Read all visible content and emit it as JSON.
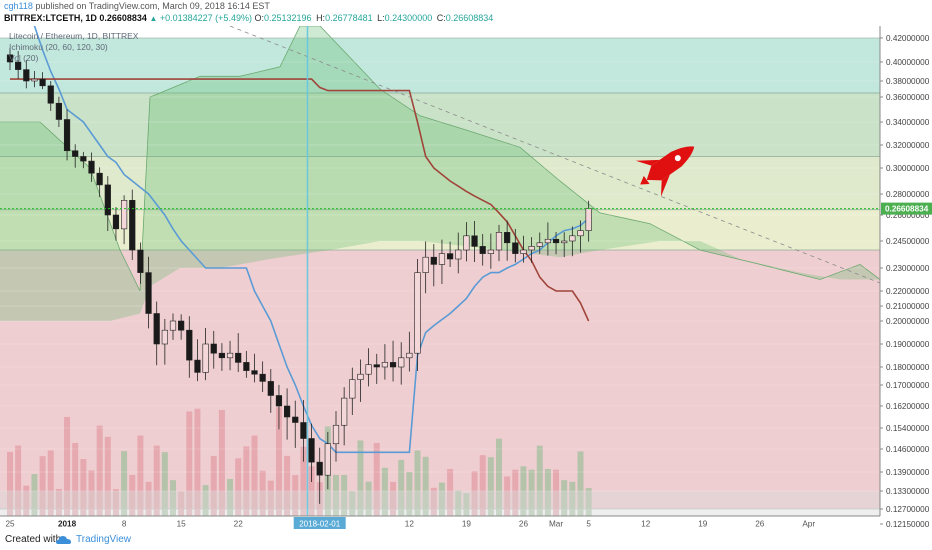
{
  "header": {
    "author": "cgh118",
    "published_text": "published on TradingView.com, March 09, 2018 16:14 EST",
    "symbol": "BITTREX:LTCETH, 1D",
    "price": "0.26608834",
    "change_arrow": "▲",
    "change": "+0.01384227 (+5.49%)",
    "open_label": "O:",
    "open": "0.25132196",
    "high_label": "H:",
    "high": "0.26778481",
    "low_label": "L:",
    "low": "0.24300000",
    "close_label": "C:",
    "close": "0.26608834"
  },
  "legend": {
    "title": "Litecoin / Ethereum, 1D, BITTREX",
    "ichimoku": "Ichimoku (20, 60, 120, 30)",
    "volume": "Vol (20)"
  },
  "footer": {
    "created_with": "Created with",
    "brand": "TradingView"
  },
  "colors": {
    "up_candle": "#f4d7d9",
    "down_candle": "#1a1a1a",
    "conversion_line": "#5b9bd5",
    "base_line": "#a0453a",
    "last_price": "#26c026",
    "crosshair": "#66c7e0",
    "rocket": "#e01010"
  },
  "chart_data": {
    "type": "candlestick",
    "symbol": "LTCETH",
    "exchange": "BITTREX",
    "interval": "1D",
    "ylim": [
      0.12,
      0.425
    ],
    "y_ticks": [
      "0.42000000",
      "0.40000000",
      "0.38000000",
      "0.36000000",
      "0.34000000",
      "0.32000000",
      "0.30000000",
      "0.28000000",
      "0.26000000",
      "0.24500000",
      "0.23000000",
      "0.22000000",
      "0.21000000",
      "0.20000000",
      "0.19000000",
      "0.18000000",
      "0.17000000",
      "0.16200000",
      "0.15400000",
      "0.14600000",
      "0.13900000",
      "0.13300000",
      "0.12700000",
      "0.12150000"
    ],
    "x_ticks": [
      {
        "label": "25",
        "index": 0
      },
      {
        "label": "2018",
        "index": 7
      },
      {
        "label": "8",
        "index": 14
      },
      {
        "label": "15",
        "index": 21
      },
      {
        "label": "22",
        "index": 28
      },
      {
        "label": "2018-02-01",
        "index": 38
      },
      {
        "label": "12",
        "index": 49
      },
      {
        "label": "19",
        "index": 56
      },
      {
        "label": "26",
        "index": 63
      },
      {
        "label": "Mar",
        "index": 67
      },
      {
        "label": "5",
        "index": 71
      },
      {
        "label": "12",
        "index": 78
      },
      {
        "label": "19",
        "index": 85
      },
      {
        "label": "26",
        "index": 92
      },
      {
        "label": "Apr",
        "index": 98
      }
    ],
    "crosshair_date": "2018-02-01",
    "last_price_label": "0.26608834",
    "last_price": 0.26608834,
    "fib_levels": [
      0.42,
      0.365,
      0.31,
      0.265,
      0.24,
      0.127
    ],
    "closes": [
      0.4,
      0.392,
      0.38,
      0.382,
      0.374,
      0.355,
      0.342,
      0.315,
      0.31,
      0.306,
      0.296,
      0.287,
      0.26,
      0.252,
      0.274,
      0.24,
      0.228,
      0.205,
      0.19,
      0.196,
      0.2,
      0.196,
      0.183,
      0.177,
      0.19,
      0.186,
      0.184,
      0.186,
      0.182,
      0.178,
      0.176,
      0.172,
      0.166,
      0.162,
      0.158,
      0.156,
      0.15,
      0.142,
      0.138,
      0.148,
      0.155,
      0.165,
      0.173,
      0.176,
      0.181,
      0.18,
      0.182,
      0.18,
      0.184,
      0.186,
      0.228,
      0.236,
      0.232,
      0.238,
      0.235,
      0.24,
      0.248,
      0.242,
      0.238,
      0.24,
      0.25,
      0.244,
      0.238,
      0.24,
      0.242,
      0.244,
      0.246,
      0.244,
      0.245,
      0.248,
      0.251,
      0.266
    ],
    "conversion_line": [
      0.46,
      0.46,
      0.45,
      0.43,
      0.41,
      0.39,
      0.37,
      0.35,
      0.345,
      0.34,
      0.33,
      0.32,
      0.31,
      0.305,
      0.295,
      0.29,
      0.285,
      0.28,
      0.27,
      0.26,
      0.252,
      0.245,
      0.24,
      0.235,
      0.23,
      0.23,
      0.23,
      0.23,
      0.23,
      0.23,
      0.22,
      0.21,
      0.2,
      0.19,
      0.18,
      0.17,
      0.162,
      0.155,
      0.15,
      0.148,
      0.145,
      0.145,
      0.145,
      0.145,
      0.145,
      0.145,
      0.145,
      0.145,
      0.145,
      0.145,
      0.185,
      0.195,
      0.198,
      0.201,
      0.205,
      0.21,
      0.215,
      0.222,
      0.226,
      0.228,
      0.228,
      0.23,
      0.232,
      0.235,
      0.238,
      0.24,
      0.244,
      0.248,
      0.251,
      0.252,
      0.254,
      0.258
    ],
    "base_line": [
      0.382,
      0.382,
      0.382,
      0.382,
      0.382,
      0.382,
      0.382,
      0.382,
      0.382,
      0.382,
      0.382,
      0.382,
      0.382,
      0.382,
      0.382,
      0.382,
      0.382,
      0.382,
      0.382,
      0.382,
      0.382,
      0.382,
      0.382,
      0.382,
      0.382,
      0.382,
      0.382,
      0.382,
      0.382,
      0.382,
      0.382,
      0.382,
      0.382,
      0.382,
      0.382,
      0.382,
      0.382,
      0.382,
      0.372,
      0.368,
      0.368,
      0.368,
      0.368,
      0.368,
      0.368,
      0.368,
      0.368,
      0.368,
      0.368,
      0.368,
      0.34,
      0.31,
      0.3,
      0.295,
      0.29,
      0.286,
      0.282,
      0.278,
      0.274,
      0.27,
      0.262,
      0.256,
      0.248,
      0.24,
      0.234,
      0.226,
      0.222,
      0.22,
      0.22,
      0.22,
      0.212,
      0.2
    ]
  }
}
